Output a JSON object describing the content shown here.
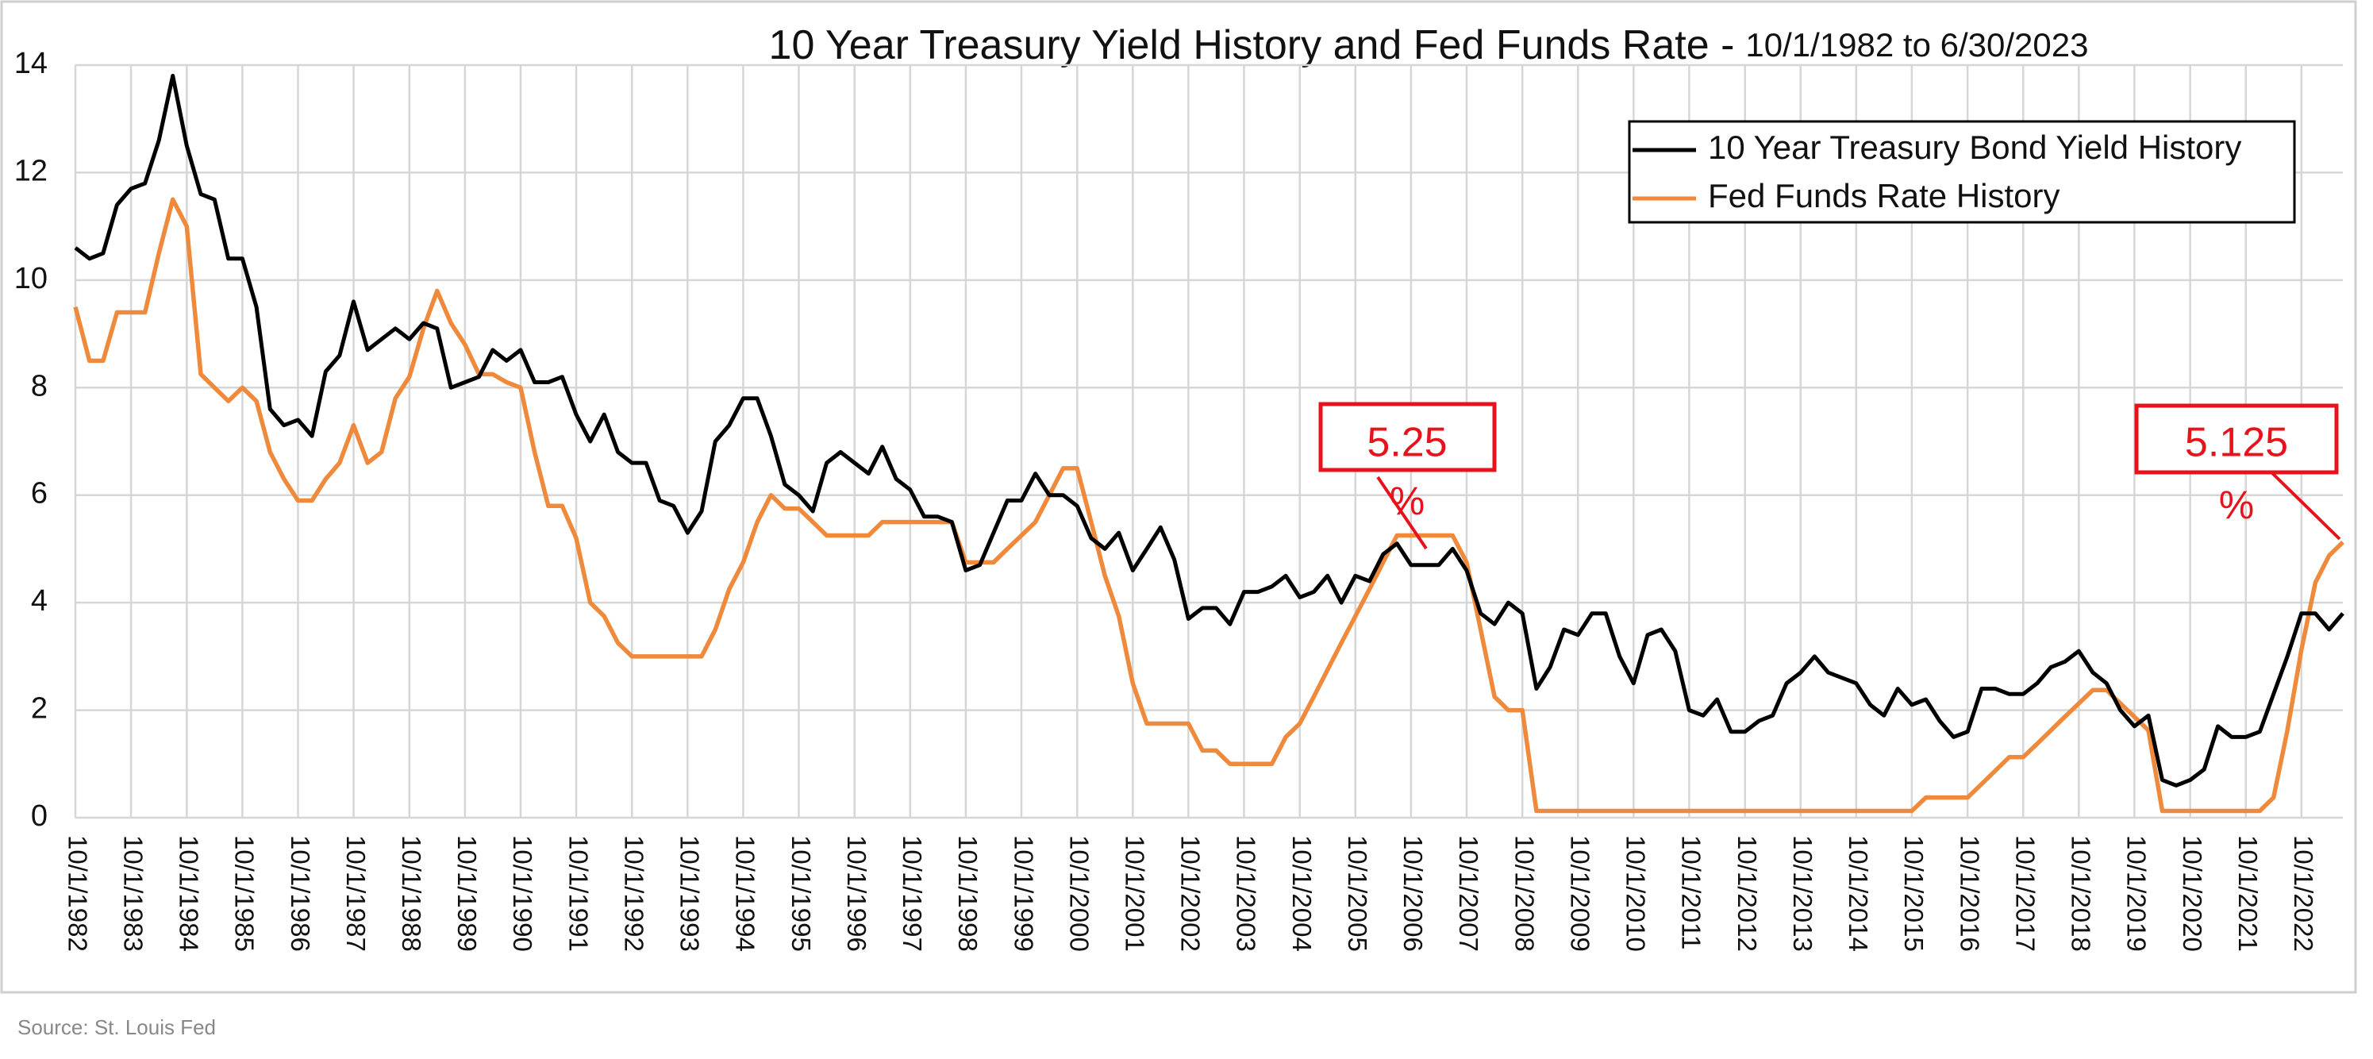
{
  "chart_data": {
    "type": "line",
    "title": "10 Year Treasury Yield History and Fed Funds Rate -",
    "subtitle": "10/1/1982 to 6/30/2023",
    "source": "Source: St. Louis Fed",
    "legend": "upper right",
    "grid": true,
    "ylim": [
      0,
      14
    ],
    "yticks": [
      0,
      2,
      4,
      6,
      8,
      10,
      12,
      14
    ],
    "xlim": [
      "10/1/1982",
      "6/30/2023"
    ],
    "xticks": [
      "10/1/1982",
      "10/1/1983",
      "10/1/1984",
      "10/1/1985",
      "10/1/1986",
      "10/1/1987",
      "10/1/1988",
      "10/1/1989",
      "10/1/1990",
      "10/1/1991",
      "10/1/1992",
      "10/1/1993",
      "10/1/1994",
      "10/1/1995",
      "10/1/1996",
      "10/1/1997",
      "10/1/1998",
      "10/1/1999",
      "10/1/2000",
      "10/1/2001",
      "10/1/2002",
      "10/1/2003",
      "10/1/2004",
      "10/1/2005",
      "10/1/2006",
      "10/1/2007",
      "10/1/2008",
      "10/1/2009",
      "10/1/2010",
      "10/1/2011",
      "10/1/2012",
      "10/1/2013",
      "10/1/2014",
      "10/1/2015",
      "10/1/2016",
      "10/1/2017",
      "10/1/2018",
      "10/1/2019",
      "10/1/2020",
      "10/1/2021",
      "10/1/2022"
    ],
    "x": [
      "10/1/1982",
      "1/1/1983",
      "4/1/1983",
      "7/1/1983",
      "10/1/1983",
      "1/1/1984",
      "4/1/1984",
      "7/1/1984",
      "10/1/1984",
      "1/1/1985",
      "4/1/1985",
      "7/1/1985",
      "10/1/1985",
      "1/1/1986",
      "4/1/1986",
      "7/1/1986",
      "10/1/1986",
      "1/1/1987",
      "4/1/1987",
      "7/1/1987",
      "10/1/1987",
      "1/1/1988",
      "4/1/1988",
      "7/1/1988",
      "10/1/1988",
      "1/1/1989",
      "4/1/1989",
      "7/1/1989",
      "10/1/1989",
      "1/1/1990",
      "4/1/1990",
      "7/1/1990",
      "10/1/1990",
      "1/1/1991",
      "4/1/1991",
      "7/1/1991",
      "10/1/1991",
      "1/1/1992",
      "4/1/1992",
      "7/1/1992",
      "10/1/1992",
      "1/1/1993",
      "4/1/1993",
      "7/1/1993",
      "10/1/1993",
      "1/1/1994",
      "4/1/1994",
      "7/1/1994",
      "10/1/1994",
      "1/1/1995",
      "4/1/1995",
      "7/1/1995",
      "10/1/1995",
      "1/1/1996",
      "4/1/1996",
      "7/1/1996",
      "10/1/1996",
      "1/1/1997",
      "4/1/1997",
      "7/1/1997",
      "10/1/1997",
      "1/1/1998",
      "4/1/1998",
      "7/1/1998",
      "10/1/1998",
      "1/1/1999",
      "4/1/1999",
      "7/1/1999",
      "10/1/1999",
      "1/1/2000",
      "4/1/2000",
      "7/1/2000",
      "10/1/2000",
      "1/1/2001",
      "4/1/2001",
      "7/1/2001",
      "10/1/2001",
      "1/1/2002",
      "4/1/2002",
      "7/1/2002",
      "10/1/2002",
      "1/1/2003",
      "4/1/2003",
      "7/1/2003",
      "10/1/2003",
      "1/1/2004",
      "4/1/2004",
      "7/1/2004",
      "10/1/2004",
      "1/1/2005",
      "4/1/2005",
      "7/1/2005",
      "10/1/2005",
      "1/1/2006",
      "4/1/2006",
      "7/1/2006",
      "10/1/2006",
      "1/1/2007",
      "4/1/2007",
      "7/1/2007",
      "10/1/2007",
      "1/1/2008",
      "4/1/2008",
      "7/1/2008",
      "10/1/2008",
      "1/1/2009",
      "4/1/2009",
      "7/1/2009",
      "10/1/2009",
      "1/1/2010",
      "4/1/2010",
      "7/1/2010",
      "10/1/2010",
      "1/1/2011",
      "4/1/2011",
      "7/1/2011",
      "10/1/2011",
      "1/1/2012",
      "4/1/2012",
      "7/1/2012",
      "10/1/2012",
      "1/1/2013",
      "4/1/2013",
      "7/1/2013",
      "10/1/2013",
      "1/1/2014",
      "4/1/2014",
      "7/1/2014",
      "10/1/2014",
      "1/1/2015",
      "4/1/2015",
      "7/1/2015",
      "10/1/2015",
      "1/1/2016",
      "4/1/2016",
      "7/1/2016",
      "10/1/2016",
      "1/1/2017",
      "4/1/2017",
      "7/1/2017",
      "10/1/2017",
      "1/1/2018",
      "4/1/2018",
      "7/1/2018",
      "10/1/2018",
      "1/1/2019",
      "4/1/2019",
      "7/1/2019",
      "10/1/2019",
      "1/1/2020",
      "4/1/2020",
      "7/1/2020",
      "10/1/2020",
      "1/1/2021",
      "4/1/2021",
      "7/1/2021",
      "10/1/2021",
      "1/1/2022",
      "4/1/2022",
      "7/1/2022",
      "10/1/2022",
      "1/1/2023",
      "4/1/2023",
      "6/30/2023"
    ],
    "series": [
      {
        "name": "10 Year Treasury Bond Yield History",
        "color": "#000000",
        "values": [
          10.6,
          10.4,
          10.5,
          11.4,
          11.7,
          11.8,
          12.6,
          13.8,
          12.5,
          11.6,
          11.5,
          10.4,
          10.4,
          9.5,
          7.6,
          7.3,
          7.4,
          7.1,
          8.3,
          8.6,
          9.6,
          8.7,
          8.9,
          9.1,
          8.9,
          9.2,
          9.1,
          8.0,
          8.1,
          8.2,
          8.7,
          8.5,
          8.7,
          8.1,
          8.1,
          8.2,
          7.5,
          7.0,
          7.5,
          6.8,
          6.6,
          6.6,
          5.9,
          5.8,
          5.3,
          5.7,
          7.0,
          7.3,
          7.8,
          7.8,
          7.1,
          6.2,
          6.0,
          5.7,
          6.6,
          6.8,
          6.6,
          6.4,
          6.9,
          6.3,
          6.1,
          5.6,
          5.6,
          5.5,
          4.6,
          4.7,
          5.3,
          5.9,
          5.9,
          6.4,
          6.0,
          6.0,
          5.8,
          5.2,
          5.0,
          5.3,
          4.6,
          5.0,
          5.4,
          4.8,
          3.7,
          3.9,
          3.9,
          3.6,
          4.2,
          4.2,
          4.3,
          4.5,
          4.1,
          4.2,
          4.5,
          4.0,
          4.5,
          4.4,
          4.9,
          5.1,
          4.7,
          4.7,
          4.7,
          5.0,
          4.6,
          3.8,
          3.6,
          4.0,
          3.8,
          2.4,
          2.8,
          3.5,
          3.4,
          3.8,
          3.8,
          3.0,
          2.5,
          3.4,
          3.5,
          3.1,
          2.0,
          1.9,
          2.2,
          1.6,
          1.6,
          1.8,
          1.9,
          2.5,
          2.7,
          3.0,
          2.7,
          2.6,
          2.5,
          2.1,
          1.9,
          2.4,
          2.1,
          2.2,
          1.8,
          1.5,
          1.6,
          2.4,
          2.4,
          2.3,
          2.3,
          2.5,
          2.8,
          2.9,
          3.1,
          2.7,
          2.5,
          2.0,
          1.7,
          1.9,
          0.7,
          0.6,
          0.7,
          0.9,
          1.7,
          1.5,
          1.5,
          1.6,
          2.3,
          3.0,
          3.8,
          3.8,
          3.5,
          3.8
        ]
      },
      {
        "name": "Fed Funds Rate History",
        "color": "#ef8a3c",
        "values": [
          9.5,
          8.5,
          8.5,
          9.4,
          9.4,
          9.4,
          10.5,
          11.5,
          11.0,
          8.25,
          8.0,
          7.75,
          8.0,
          7.75,
          6.8,
          6.3,
          5.9,
          5.9,
          6.3,
          6.6,
          7.3,
          6.6,
          6.8,
          7.8,
          8.2,
          9.1,
          9.8,
          9.2,
          8.8,
          8.25,
          8.25,
          8.1,
          8.0,
          6.8,
          5.8,
          5.8,
          5.2,
          4.0,
          3.75,
          3.25,
          3.0,
          3.0,
          3.0,
          3.0,
          3.0,
          3.0,
          3.5,
          4.25,
          4.75,
          5.5,
          6.0,
          5.75,
          5.75,
          5.5,
          5.25,
          5.25,
          5.25,
          5.25,
          5.5,
          5.5,
          5.5,
          5.5,
          5.5,
          5.5,
          4.75,
          4.75,
          4.75,
          5.0,
          5.25,
          5.5,
          6.0,
          6.5,
          6.5,
          5.5,
          4.5,
          3.75,
          2.5,
          1.75,
          1.75,
          1.75,
          1.75,
          1.25,
          1.25,
          1.0,
          1.0,
          1.0,
          1.0,
          1.5,
          1.75,
          2.25,
          2.75,
          3.25,
          3.75,
          4.25,
          4.75,
          5.25,
          5.25,
          5.25,
          5.25,
          5.25,
          4.75,
          3.5,
          2.25,
          2.0,
          2.0,
          0.125,
          0.125,
          0.125,
          0.125,
          0.125,
          0.125,
          0.125,
          0.125,
          0.125,
          0.125,
          0.125,
          0.125,
          0.125,
          0.125,
          0.125,
          0.125,
          0.125,
          0.125,
          0.125,
          0.125,
          0.125,
          0.125,
          0.125,
          0.125,
          0.125,
          0.125,
          0.125,
          0.125,
          0.375,
          0.375,
          0.375,
          0.375,
          0.625,
          0.875,
          1.125,
          1.125,
          1.375,
          1.625,
          1.875,
          2.125,
          2.375,
          2.375,
          2.125,
          1.875,
          1.625,
          0.125,
          0.125,
          0.125,
          0.125,
          0.125,
          0.125,
          0.125,
          0.125,
          0.375,
          1.625,
          3.125,
          4.375,
          4.875,
          5.125
        ]
      }
    ],
    "annotations": [
      {
        "text": "5.25",
        "unit": "%"
      },
      {
        "text": "5.125",
        "unit": "%"
      }
    ]
  }
}
